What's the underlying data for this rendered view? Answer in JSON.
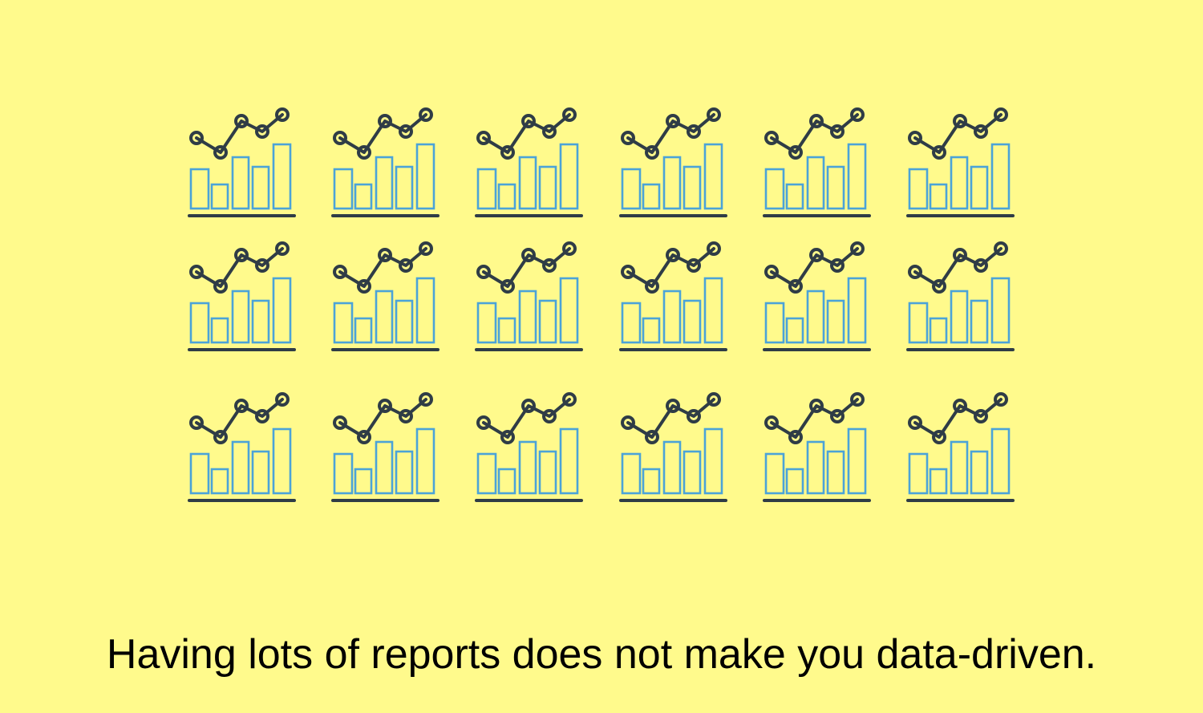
{
  "colors": {
    "background": "#fffa8c",
    "bar_stroke": "#4ba3d8",
    "line_stroke": "#2f3c46",
    "caption_text": "#000000"
  },
  "icon_grid": {
    "rows": 3,
    "columns": 6,
    "icon_name": "bar-and-line-chart-icon"
  },
  "caption": {
    "text": "Having lots of reports does not make you data-driven."
  }
}
